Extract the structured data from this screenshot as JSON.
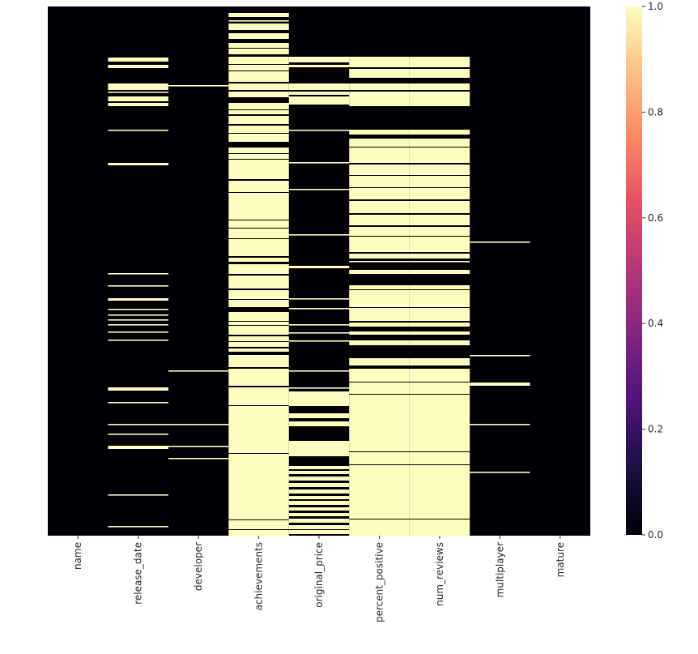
{
  "chart_data": {
    "type": "heatmap",
    "title": "",
    "xlabel": "",
    "ylabel": "",
    "categories": [
      "name",
      "release_date",
      "developer",
      "achievements",
      "original_price",
      "percent_positive",
      "num_reviews",
      "multiplayer",
      "mature"
    ],
    "ytick_labels_shown": false,
    "colormap": "magma",
    "value_range": [
      0,
      1
    ],
    "colorbar_ticks": [
      "0.0",
      "0.2",
      "0.4",
      "0.6",
      "0.8",
      "1.0"
    ],
    "colors": {
      "missing": "#fcfdbf",
      "present": "#000004"
    },
    "missing_row_ranges": {
      "name": [],
      "release_date": [
        [
          63,
          67
        ],
        [
          72,
          75
        ],
        [
          95,
          102
        ],
        [
          105,
          105
        ],
        [
          111,
          116
        ],
        [
          119,
          122
        ],
        [
          152,
          152
        ],
        [
          193,
          195
        ],
        [
          329,
          329
        ],
        [
          344,
          344
        ],
        [
          360,
          362
        ],
        [
          373,
          373
        ],
        [
          380,
          380
        ],
        [
          386,
          386
        ],
        [
          392,
          392
        ],
        [
          401,
          401
        ],
        [
          411,
          411
        ],
        [
          470,
          473
        ],
        [
          488,
          488
        ],
        [
          515,
          515
        ],
        [
          527,
          527
        ],
        [
          542,
          545
        ],
        [
          602,
          602
        ],
        [
          641,
          641
        ]
      ],
      "developer": [
        [
          97,
          97
        ],
        [
          449,
          449
        ],
        [
          515,
          515
        ],
        [
          542,
          542
        ],
        [
          557,
          557
        ]
      ],
      "achievements": [
        [
          8,
          12
        ],
        [
          17,
          17
        ],
        [
          21,
          28
        ],
        [
          33,
          39
        ],
        [
          45,
          50
        ],
        [
          52,
          58
        ],
        [
          62,
          70
        ],
        [
          72,
          78
        ],
        [
          80,
          92
        ],
        [
          95,
          102
        ],
        [
          105,
          111
        ],
        [
          119,
          126
        ],
        [
          128,
          132
        ],
        [
          135,
          144
        ],
        [
          147,
          155
        ],
        [
          157,
          166
        ],
        [
          174,
          180
        ],
        [
          182,
          187
        ],
        [
          189,
          212
        ],
        [
          215,
          228
        ],
        [
          230,
          262
        ],
        [
          264,
          272
        ],
        [
          274,
          285
        ],
        [
          287,
          297
        ],
        [
          298,
          307
        ],
        [
          310,
          314
        ],
        [
          318,
          329
        ],
        [
          332,
          347
        ],
        [
          350,
          360
        ],
        [
          362,
          370
        ],
        [
          377,
          387
        ],
        [
          389,
          392
        ],
        [
          394,
          399
        ],
        [
          400,
          404
        ],
        [
          407,
          412
        ],
        [
          414,
          419
        ],
        [
          422,
          425
        ],
        [
          430,
          444
        ],
        [
          447,
          467
        ],
        [
          470,
          491
        ],
        [
          493,
          515
        ],
        [
          516,
          550
        ],
        [
          552,
          562
        ],
        [
          563,
          632
        ],
        [
          634,
          644
        ],
        [
          646,
          653
        ]
      ],
      "original_price": [
        [
          62,
          68
        ],
        [
          72,
          74
        ],
        [
          95,
          102
        ],
        [
          105,
          108
        ],
        [
          111,
          120
        ],
        [
          152,
          152
        ],
        [
          192,
          192
        ],
        [
          225,
          225
        ],
        [
          281,
          281
        ],
        [
          320,
          322
        ],
        [
          360,
          360
        ],
        [
          372,
          372
        ],
        [
          392,
          392
        ],
        [
          402,
          402
        ],
        [
          412,
          412
        ],
        [
          449,
          449
        ],
        [
          470,
          470
        ],
        [
          475,
          492
        ],
        [
          502,
          507
        ],
        [
          512,
          517
        ],
        [
          536,
          554
        ],
        [
          567,
          570
        ],
        [
          573,
          576
        ],
        [
          580,
          584
        ],
        [
          588,
          592
        ],
        [
          596,
          600
        ],
        [
          604,
          607
        ],
        [
          610,
          614
        ],
        [
          618,
          621
        ],
        [
          625,
          628
        ],
        [
          632,
          636
        ],
        [
          640,
          644
        ],
        [
          646,
          650
        ]
      ],
      "percent_positive": [
        [
          62,
          74
        ],
        [
          77,
          87
        ],
        [
          95,
          102
        ],
        [
          105,
          122
        ],
        [
          152,
          157
        ],
        [
          163,
          172
        ],
        [
          174,
          192
        ],
        [
          195,
          207
        ],
        [
          209,
          222
        ],
        [
          224,
          237
        ],
        [
          240,
          254
        ],
        [
          257,
          269
        ],
        [
          272,
          282
        ],
        [
          284,
          302
        ],
        [
          305,
          310
        ],
        [
          314,
          314
        ],
        [
          325,
          329
        ],
        [
          344,
          348
        ],
        [
          350,
          357
        ],
        [
          355,
          370
        ],
        [
          372,
          387
        ],
        [
          390,
          394
        ],
        [
          401,
          404
        ],
        [
          412,
          417
        ],
        [
          434,
          442
        ],
        [
          447,
          462
        ],
        [
          464,
          477
        ],
        [
          479,
          548
        ],
        [
          550,
          564
        ],
        [
          566,
          631
        ],
        [
          633,
          653
        ]
      ],
      "num_reviews": [
        [
          62,
          74
        ],
        [
          77,
          87
        ],
        [
          95,
          102
        ],
        [
          105,
          122
        ],
        [
          152,
          157
        ],
        [
          163,
          172
        ],
        [
          174,
          192
        ],
        [
          195,
          207
        ],
        [
          209,
          222
        ],
        [
          224,
          237
        ],
        [
          240,
          254
        ],
        [
          257,
          269
        ],
        [
          272,
          282
        ],
        [
          284,
          302
        ],
        [
          305,
          310
        ],
        [
          314,
          314
        ],
        [
          325,
          329
        ],
        [
          344,
          348
        ],
        [
          350,
          357
        ],
        [
          355,
          370
        ],
        [
          372,
          387
        ],
        [
          390,
          394
        ],
        [
          401,
          404
        ],
        [
          412,
          417
        ],
        [
          434,
          442
        ],
        [
          447,
          462
        ],
        [
          464,
          477
        ],
        [
          479,
          548
        ],
        [
          550,
          564
        ],
        [
          566,
          631
        ],
        [
          633,
          653
        ]
      ],
      "multiplayer": [
        [
          290,
          290
        ],
        [
          430,
          430
        ],
        [
          464,
          467
        ],
        [
          515,
          515
        ],
        [
          574,
          574
        ]
      ],
      "mature": []
    }
  }
}
